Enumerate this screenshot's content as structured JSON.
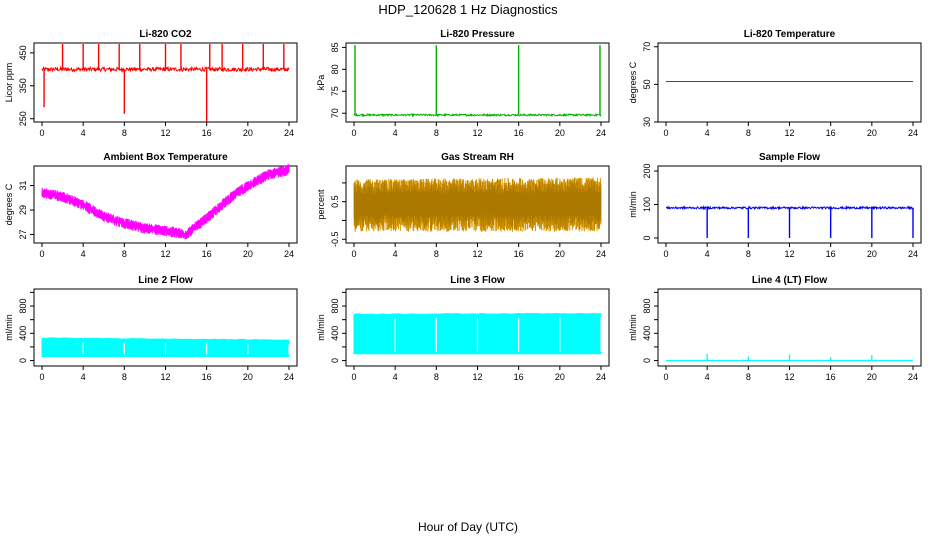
{
  "figure": {
    "title": "HDP_120628  1 Hz Diagnostics",
    "xlabel": "Hour of Day (UTC)"
  },
  "chart_data": [
    {
      "type": "line",
      "title": "Li-820 CO2",
      "ylabel": "Licor ppm",
      "xlim": [
        0,
        24
      ],
      "ylim": [
        240,
        480
      ],
      "xticks": [
        0,
        4,
        8,
        12,
        16,
        20,
        24
      ],
      "yticks": [
        250,
        350,
        450
      ],
      "color": "#ff0000",
      "series": [
        {
          "baseline": 400,
          "noise": 6,
          "spikes_up": [
            2,
            4,
            5.5,
            7.5,
            9.5,
            12,
            13.5,
            16.3,
            17.5,
            19.5,
            21.5,
            23.5
          ],
          "spikes_up_value": 477,
          "spikes_down": [
            0.2,
            8,
            16
          ],
          "spikes_down_value": [
            285,
            265,
            240
          ]
        }
      ]
    },
    {
      "type": "line",
      "title": "Li-820 Pressure",
      "ylabel": "kPa",
      "xlim": [
        0,
        24
      ],
      "ylim": [
        68,
        86
      ],
      "xticks": [
        0,
        4,
        8,
        12,
        16,
        20,
        24
      ],
      "yticks": [
        70,
        75,
        80,
        85
      ],
      "color": "#00b000",
      "series": [
        {
          "baseline": 69.6,
          "noise": 0.2,
          "spikes_up": [
            0.1,
            8,
            16,
            23.9
          ],
          "spikes_up_value": 85.5
        }
      ]
    },
    {
      "type": "line",
      "title": "Li-820 Temperature",
      "ylabel": "degrees C",
      "xlim": [
        0,
        24
      ],
      "ylim": [
        30,
        72
      ],
      "xticks": [
        0,
        4,
        8,
        12,
        16,
        20,
        24
      ],
      "yticks": [
        30,
        50,
        70
      ],
      "color": "#d0007a",
      "series": [
        {
          "x": [
            0,
            24
          ],
          "y": [
            51.5,
            51.5
          ]
        }
      ]
    },
    {
      "type": "area",
      "title": "Ambient Box Temperature",
      "ylabel": "degrees C",
      "xlim": [
        0,
        24
      ],
      "ylim": [
        26.3,
        32.6
      ],
      "xticks": [
        0,
        4,
        8,
        12,
        16,
        20,
        24
      ],
      "yticks": [
        27,
        29,
        31
      ],
      "color": "#ff00ff",
      "series": [
        {
          "x": [
            0,
            2,
            4,
            6,
            8,
            10,
            12,
            14,
            16,
            18,
            20,
            22,
            24
          ],
          "y": [
            30.4,
            30.1,
            29.4,
            28.5,
            27.9,
            27.5,
            27.3,
            27.0,
            28.3,
            29.8,
            31.0,
            31.9,
            32.3
          ],
          "band": 0.45
        }
      ]
    },
    {
      "type": "area",
      "title": "Gas Stream RH",
      "ylabel": "percent",
      "xlim": [
        0,
        24
      ],
      "ylim": [
        -0.6,
        1.45
      ],
      "xticks": [
        0,
        4,
        8,
        12,
        16,
        20,
        24
      ],
      "yticks": [
        -0.5,
        0.5
      ],
      "yticks_minor": [
        0,
        1
      ],
      "color": "#e6a000",
      "series": [
        {
          "x": [
            0,
            24
          ],
          "low": [
            -0.3,
            -0.3
          ],
          "high": [
            1.1,
            1.15
          ],
          "center": 0.45
        }
      ]
    },
    {
      "type": "line",
      "title": "Sample Flow",
      "ylabel": "ml/min",
      "xlim": [
        0,
        24
      ],
      "ylim": [
        -15,
        215
      ],
      "xticks": [
        0,
        4,
        8,
        12,
        16,
        20,
        24
      ],
      "yticks": [
        0,
        100,
        200
      ],
      "color": "#0000ff",
      "series": [
        {
          "baseline": 90,
          "noise": 3,
          "spikes_down": [
            4,
            8,
            12,
            16,
            20,
            24
          ],
          "spikes_down_value": 0
        }
      ]
    },
    {
      "type": "area",
      "title": "Line 2 Flow",
      "ylabel": "ml/min",
      "xlim": [
        0,
        24
      ],
      "ylim": [
        -80,
        1050
      ],
      "xticks": [
        0,
        4,
        8,
        12,
        16,
        20,
        24
      ],
      "yticks": [
        0,
        400,
        800
      ],
      "yticks_minor": [
        200,
        600,
        1000
      ],
      "color": "#00ffff",
      "series": [
        {
          "x": [
            0,
            24
          ],
          "low": [
            60,
            60
          ],
          "high": [
            330,
            300
          ],
          "gaps": [
            4,
            8,
            12,
            16,
            20,
            24
          ]
        }
      ]
    },
    {
      "type": "area",
      "title": "Line 3 Flow",
      "ylabel": "ml/min",
      "xlim": [
        0,
        24
      ],
      "ylim": [
        -80,
        1050
      ],
      "xticks": [
        0,
        4,
        8,
        12,
        16,
        20,
        24
      ],
      "yticks": [
        0,
        400,
        800
      ],
      "yticks_minor": [
        200,
        600,
        1000
      ],
      "color": "#00ffff",
      "series": [
        {
          "x": [
            0,
            24
          ],
          "low": [
            100,
            100
          ],
          "high": [
            680,
            690
          ],
          "gaps": [
            4,
            8,
            12,
            16,
            20,
            24
          ]
        }
      ]
    },
    {
      "type": "line",
      "title": "Line 4 (LT) Flow",
      "ylabel": "ml/min",
      "xlim": [
        0,
        24
      ],
      "ylim": [
        -80,
        1050
      ],
      "xticks": [
        0,
        4,
        8,
        12,
        16,
        20,
        24
      ],
      "yticks": [
        0,
        400,
        800
      ],
      "yticks_minor": [
        200,
        600,
        1000
      ],
      "color": "#00ffff",
      "series": [
        {
          "baseline": 0,
          "noise": 0,
          "spikes_up": [
            4,
            8,
            12,
            16,
            20
          ],
          "spikes_up_value": [
            100,
            60,
            90,
            50,
            80
          ]
        }
      ]
    }
  ]
}
